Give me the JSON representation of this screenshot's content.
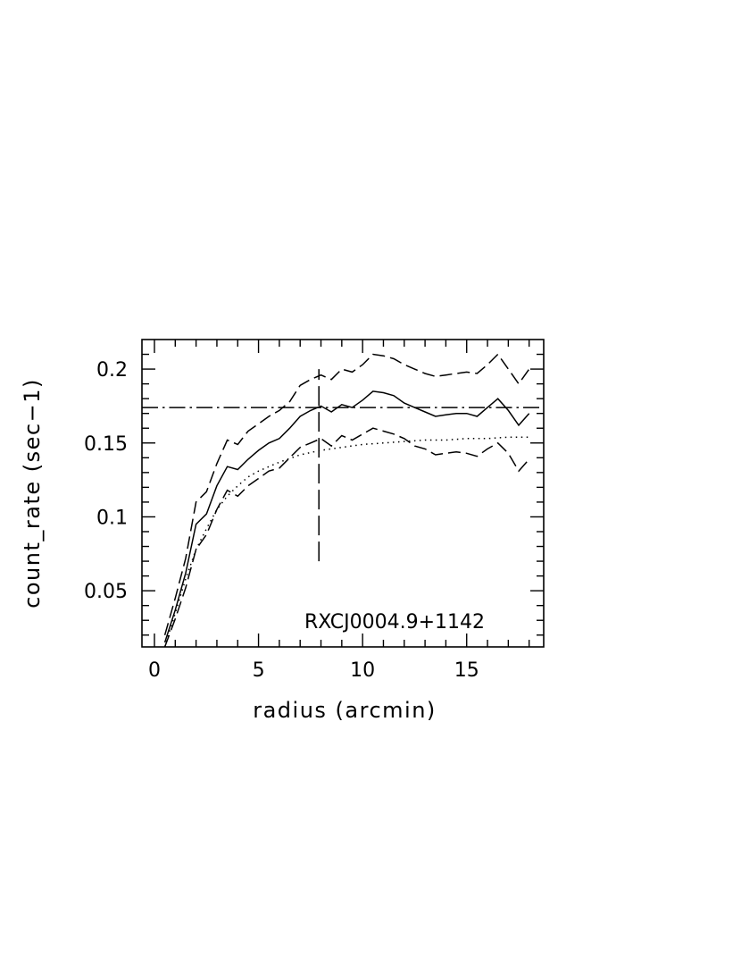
{
  "chart_data": {
    "type": "line",
    "xlabel": "radius (arcmin)",
    "ylabel": "count_rate (sec−1)",
    "xlim": [
      -0.6,
      18.7
    ],
    "ylim": [
      0.012,
      0.22
    ],
    "x_ticks": [
      0,
      5,
      10,
      15
    ],
    "x_tick_labels": [
      "0",
      "5",
      "10",
      "15"
    ],
    "y_ticks": [
      0.05,
      0.1,
      0.15,
      0.2
    ],
    "y_tick_labels": [
      "0.05",
      "0.1",
      "0.15",
      "0.2"
    ],
    "annotation": "RXCJ0004.9+1142",
    "grid": false,
    "series": [
      {
        "style": "solid",
        "x": [
          0.5,
          1.0,
          1.5,
          2.0,
          2.5,
          3.0,
          3.5,
          4.0,
          4.5,
          5.0,
          5.5,
          6.0,
          6.5,
          7.0,
          7.5,
          8.0,
          8.5,
          9.0,
          9.5,
          10.0,
          10.5,
          11.0,
          11.5,
          12.0,
          12.5,
          13.0,
          13.5,
          14.0,
          14.5,
          15.0,
          15.5,
          16.0,
          16.5,
          17.0,
          17.5,
          18.0
        ],
        "y": [
          0.015,
          0.037,
          0.062,
          0.095,
          0.102,
          0.121,
          0.134,
          0.132,
          0.139,
          0.145,
          0.15,
          0.153,
          0.16,
          0.168,
          0.172,
          0.175,
          0.171,
          0.176,
          0.174,
          0.179,
          0.185,
          0.184,
          0.182,
          0.177,
          0.174,
          0.171,
          0.168,
          0.169,
          0.17,
          0.17,
          0.168,
          0.174,
          0.18,
          0.172,
          0.162,
          0.17
        ]
      },
      {
        "style": "dashed",
        "x": [
          0.5,
          1.0,
          1.5,
          2.0,
          2.5,
          3.0,
          3.5,
          4.0,
          4.5,
          5.0,
          5.5,
          6.0,
          6.5,
          7.0,
          7.5,
          8.0,
          8.5,
          9.0,
          9.5,
          10.0,
          10.5,
          11.0,
          11.5,
          12.0,
          12.5,
          13.0,
          13.5,
          14.0,
          14.5,
          15.0,
          15.5,
          16.0,
          16.5,
          17.0,
          17.5,
          18.0
        ],
        "y": [
          0.02,
          0.045,
          0.072,
          0.11,
          0.117,
          0.136,
          0.152,
          0.149,
          0.158,
          0.163,
          0.168,
          0.172,
          0.178,
          0.189,
          0.193,
          0.196,
          0.193,
          0.2,
          0.198,
          0.203,
          0.21,
          0.209,
          0.207,
          0.203,
          0.2,
          0.197,
          0.195,
          0.196,
          0.197,
          0.198,
          0.197,
          0.203,
          0.21,
          0.2,
          0.19,
          0.2
        ]
      },
      {
        "style": "dashed",
        "x": [
          0.5,
          1.0,
          1.5,
          2.0,
          2.5,
          3.0,
          3.5,
          4.0,
          4.5,
          5.0,
          5.5,
          6.0,
          6.5,
          7.0,
          7.5,
          8.0,
          8.5,
          9.0,
          9.5,
          10.0,
          10.5,
          11.0,
          11.5,
          12.0,
          12.5,
          13.0,
          13.5,
          14.0,
          14.5,
          15.0,
          15.5,
          16.0,
          16.5,
          17.0,
          17.5,
          18.0
        ],
        "y": [
          0.012,
          0.031,
          0.052,
          0.078,
          0.088,
          0.105,
          0.118,
          0.114,
          0.121,
          0.126,
          0.131,
          0.133,
          0.14,
          0.147,
          0.15,
          0.153,
          0.148,
          0.155,
          0.152,
          0.156,
          0.16,
          0.158,
          0.156,
          0.153,
          0.148,
          0.146,
          0.142,
          0.143,
          0.144,
          0.143,
          0.141,
          0.146,
          0.15,
          0.143,
          0.131,
          0.139
        ]
      },
      {
        "style": "dotted",
        "x": [
          0.5,
          1.0,
          1.5,
          2.0,
          2.5,
          3.0,
          3.5,
          4.0,
          4.5,
          5.0,
          5.5,
          6.0,
          7.0,
          8.0,
          9.0,
          10.0,
          11.0,
          12.0,
          13.0,
          14.0,
          15.0,
          16.0,
          17.0,
          18.0
        ],
        "y": [
          0.012,
          0.035,
          0.058,
          0.078,
          0.092,
          0.105,
          0.114,
          0.121,
          0.127,
          0.131,
          0.134,
          0.137,
          0.142,
          0.145,
          0.147,
          0.149,
          0.15,
          0.151,
          0.152,
          0.152,
          0.153,
          0.153,
          0.154,
          0.154
        ]
      },
      {
        "style": "dash-dot",
        "x": [
          -0.6,
          18.7
        ],
        "y": [
          0.174,
          0.174
        ]
      },
      {
        "style": "long-dashed",
        "x": [
          7.9,
          7.9
        ],
        "y": [
          0.07,
          0.2
        ]
      }
    ]
  }
}
